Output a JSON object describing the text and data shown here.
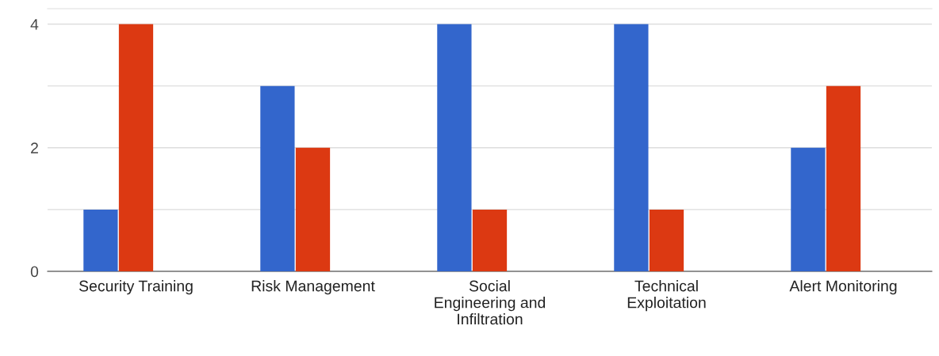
{
  "chart_data": {
    "type": "bar",
    "categories": [
      "Security Training",
      "Risk Management",
      "Social\nEngineering and\nInfiltration",
      "Technical\nExploitation",
      "Alert Monitoring"
    ],
    "series": [
      {
        "color": "#3366cc",
        "values": [
          1,
          3,
          4,
          4,
          2
        ]
      },
      {
        "color": "#dc3912",
        "values": [
          4,
          2,
          1,
          1,
          3
        ]
      }
    ],
    "ylim": [
      0,
      4.25
    ],
    "yticks": [
      0,
      {
        "value": 1,
        "label": null
      },
      2,
      {
        "value": 3,
        "label": null
      },
      4
    ],
    "grid": "y",
    "legend": false
  }
}
